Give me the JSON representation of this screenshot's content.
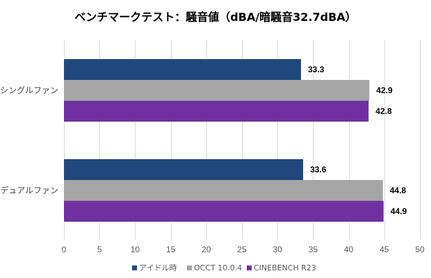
{
  "chart_data": {
    "type": "bar",
    "orientation": "horizontal",
    "title": "ベンチマークテスト：騒音値（dBA/暗騒音32.7dBA）",
    "xlabel": "",
    "ylabel": "",
    "xlim": [
      0,
      50
    ],
    "xticks": [
      0,
      5,
      10,
      15,
      20,
      25,
      30,
      35,
      40,
      45,
      50
    ],
    "tick_labels": [
      "0",
      "5",
      "10",
      "15",
      "20",
      "25",
      "30",
      "35",
      "40",
      "45",
      "50"
    ],
    "grid": true,
    "legend_position": "bottom",
    "categories": [
      "シングルファン",
      "デュアルファン"
    ],
    "series": [
      {
        "name": "アイドル時",
        "color": "#1f497d",
        "values": [
          33.3,
          33.6
        ],
        "labels": [
          "33.3",
          "33.6"
        ]
      },
      {
        "name": "OCCT 10.0.4",
        "color": "#a5a5a5",
        "values": [
          42.9,
          44.8
        ],
        "labels": [
          "42.9",
          "44.8"
        ]
      },
      {
        "name": "CINEBENCH R23",
        "color": "#7030a0",
        "values": [
          42.8,
          44.9
        ],
        "labels": [
          "42.8",
          "44.9"
        ]
      }
    ]
  }
}
